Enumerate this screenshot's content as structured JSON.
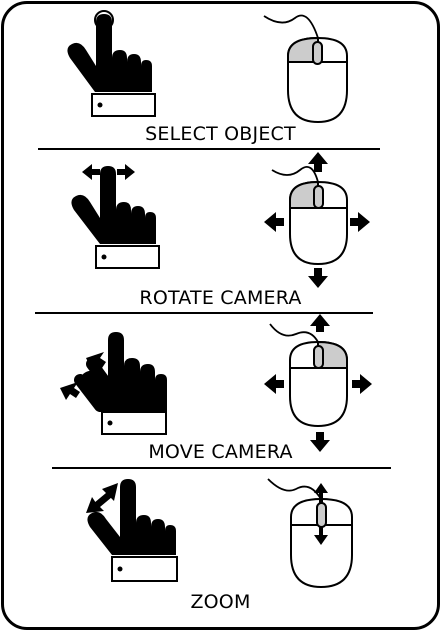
{
  "colors": {
    "ink": "#000000",
    "paper": "#ffffff",
    "button_highlight": "#cccccc"
  },
  "sections": [
    {
      "id": "select",
      "label": "SELECT OBJECT",
      "hand_gesture": "tap",
      "mouse_button": "left-click",
      "icons": [
        "hand-tap-icon",
        "mouse-left-click-icon"
      ]
    },
    {
      "id": "rotate",
      "label": "ROTATE CAMERA",
      "hand_gesture": "one-finger-drag",
      "mouse_button": "left-drag",
      "icons": [
        "hand-one-finger-drag-icon",
        "mouse-left-drag-icon"
      ]
    },
    {
      "id": "move",
      "label": "MOVE CAMERA",
      "hand_gesture": "two-finger-drag",
      "mouse_button": "right-drag",
      "icons": [
        "hand-two-finger-drag-icon",
        "mouse-right-drag-icon"
      ]
    },
    {
      "id": "zoom",
      "label": "ZOOM",
      "hand_gesture": "pinch",
      "mouse_button": "scroll-wheel",
      "icons": [
        "hand-pinch-icon",
        "mouse-scroll-wheel-icon"
      ]
    }
  ]
}
